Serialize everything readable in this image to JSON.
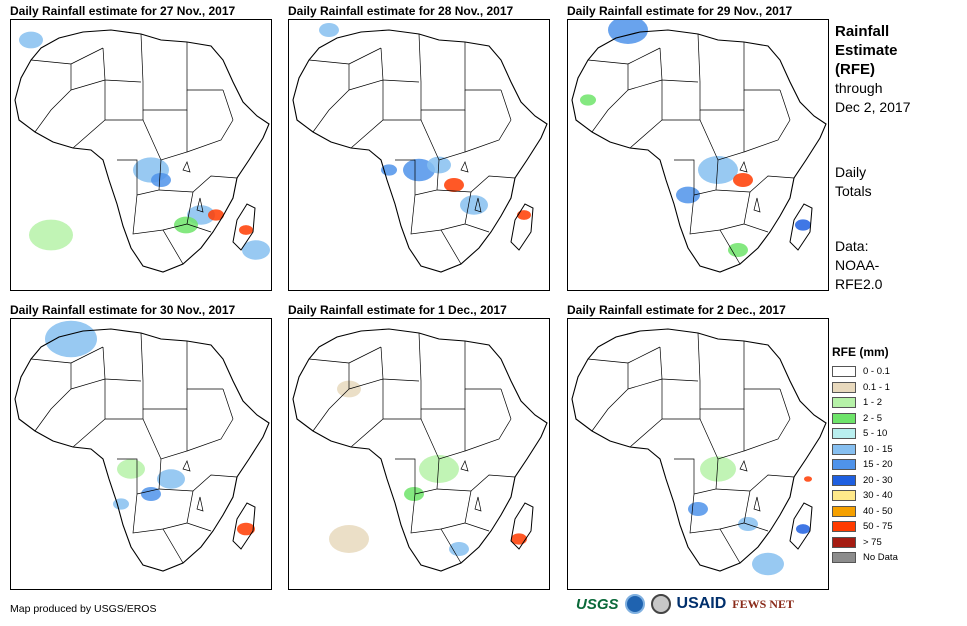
{
  "panels": [
    {
      "title": "Daily Rainfall estimate for 27 Nov., 2017"
    },
    {
      "title": "Daily Rainfall estimate for 28 Nov., 2017"
    },
    {
      "title": "Daily Rainfall estimate for 29 Nov., 2017"
    },
    {
      "title": "Daily Rainfall estimate for 30 Nov., 2017"
    },
    {
      "title": "Daily Rainfall estimate for 1 Dec., 2017"
    },
    {
      "title": "Daily Rainfall estimate for 2 Dec., 2017"
    }
  ],
  "sidebar": {
    "title_line1": "Rainfall",
    "title_line2": "Estimate",
    "title_line3": "(RFE)",
    "through_line1": "through",
    "through_line2": "Dec 2, 2017",
    "daily_line1": "Daily",
    "daily_line2": "Totals",
    "data_line1": "Data:",
    "data_line2": "NOAA-",
    "data_line3": "RFE2.0"
  },
  "legend": {
    "title": "RFE (mm)",
    "items": [
      {
        "label": "0 - 0.1",
        "color": "#ffffff"
      },
      {
        "label": "0.1 - 1",
        "color": "#e8d9bd"
      },
      {
        "label": "1 - 2",
        "color": "#b6f2a8"
      },
      {
        "label": "2 - 5",
        "color": "#6ee46a"
      },
      {
        "label": "5 - 10",
        "color": "#b9efef"
      },
      {
        "label": "10 - 15",
        "color": "#86bff0"
      },
      {
        "label": "15 - 20",
        "color": "#4f93ea"
      },
      {
        "label": "20 - 30",
        "color": "#1e5fe0"
      },
      {
        "label": "30 - 40",
        "color": "#ffe98a"
      },
      {
        "label": "40 - 50",
        "color": "#f5a000"
      },
      {
        "label": "50 - 75",
        "color": "#ff3b00"
      },
      {
        "label": "> 75",
        "color": "#a51c12"
      },
      {
        "label": "No Data",
        "color": "#8c8c8c"
      }
    ]
  },
  "footer": {
    "credit": "Map produced by USGS/EROS",
    "logos": [
      "USGS",
      "NOAA",
      "Department of State",
      "USAID",
      "FEWS NET"
    ]
  }
}
